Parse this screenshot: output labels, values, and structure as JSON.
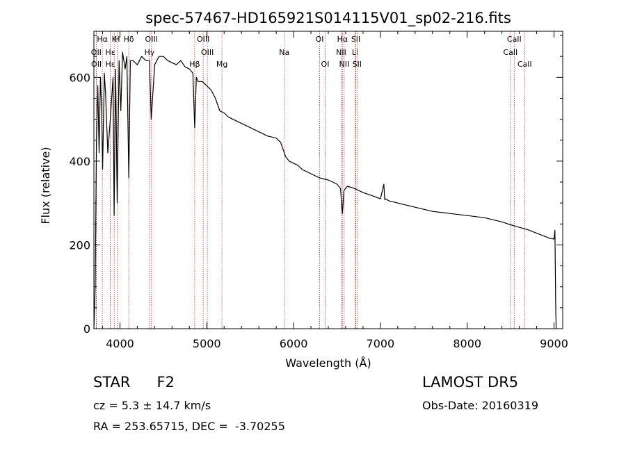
{
  "chart_data": {
    "type": "line",
    "title": "spec-57467-HD165921S014115V01_sp02-216.fits",
    "xlabel": "Wavelength (Å)",
    "ylabel": "Flux (relative)",
    "xlim": [
      3700,
      9100
    ],
    "ylim": [
      0,
      710
    ],
    "x_ticks": [
      4000,
      5000,
      6000,
      7000,
      8000,
      9000
    ],
    "y_ticks": [
      0,
      200,
      400,
      600
    ],
    "grid": false,
    "legend": "none",
    "line_color": "#000000",
    "marker_color": "#c83c3c",
    "series": [
      {
        "x": [
          3700,
          3715,
          3730,
          3745,
          3760,
          3775,
          3790,
          3800,
          3820,
          3835,
          3860,
          3889,
          3920,
          3933,
          3950,
          3968,
          3990,
          4010,
          4030,
          4060,
          4080,
          4102,
          4120,
          4150,
          4200,
          4250,
          4300,
          4340,
          4360,
          4400,
          4450,
          4500,
          4550,
          4600,
          4650,
          4700,
          4750,
          4800,
          4840,
          4861,
          4880,
          4900,
          4950,
          5000,
          5050,
          5100,
          5150,
          5200,
          5250,
          5300,
          5400,
          5500,
          5600,
          5700,
          5800,
          5850,
          5893,
          5910,
          5950,
          6000,
          6050,
          6100,
          6200,
          6300,
          6400,
          6500,
          6540,
          6563,
          6580,
          6620,
          6700,
          6800,
          6900,
          7000,
          7040,
          7050,
          7060,
          7100,
          7200,
          7400,
          7600,
          7800,
          8000,
          8200,
          8400,
          8500,
          8600,
          8700,
          8800,
          8900,
          8950,
          9000,
          9010,
          9020,
          9025
        ],
        "y": [
          0,
          100,
          450,
          580,
          420,
          600,
          520,
          380,
          610,
          560,
          420,
          500,
          600,
          270,
          620,
          300,
          640,
          520,
          660,
          620,
          650,
          360,
          640,
          640,
          630,
          650,
          640,
          640,
          500,
          630,
          650,
          650,
          640,
          635,
          630,
          640,
          625,
          620,
          610,
          480,
          600,
          590,
          590,
          580,
          570,
          550,
          520,
          515,
          505,
          500,
          490,
          480,
          470,
          460,
          455,
          445,
          420,
          410,
          400,
          395,
          390,
          380,
          370,
          360,
          355,
          345,
          335,
          275,
          330,
          340,
          335,
          325,
          318,
          310,
          345,
          308,
          310,
          305,
          300,
          290,
          280,
          275,
          270,
          265,
          255,
          248,
          242,
          236,
          228,
          220,
          216,
          214,
          235,
          50,
          0
        ]
      }
    ],
    "line_markers": [
      {
        "label": "Hα",
        "wavelength": 3797,
        "row": 0
      },
      {
        "label": "K",
        "wavelength": 3934,
        "row": 0
      },
      {
        "label": "H",
        "wavelength": 3968,
        "row": 0
      },
      {
        "label": "Hδ",
        "wavelength": 4102,
        "row": 0
      },
      {
        "label": "OIII",
        "wavelength": 4363,
        "row": 0
      },
      {
        "label": "OIII",
        "wavelength": 4959,
        "row": 0
      },
      {
        "label": "OI",
        "wavelength": 6300,
        "row": 0
      },
      {
        "label": "Hα",
        "wavelength": 6563,
        "row": 0
      },
      {
        "label": "SII",
        "wavelength": 6717,
        "row": 0
      },
      {
        "label": "CaII",
        "wavelength": 8542,
        "row": 0
      },
      {
        "label": "OII",
        "wavelength": 3727,
        "row": 1
      },
      {
        "label": "Hε",
        "wavelength": 3889,
        "row": 1
      },
      {
        "label": "Hγ",
        "wavelength": 4340,
        "row": 1
      },
      {
        "label": "OIII",
        "wavelength": 5007,
        "row": 1
      },
      {
        "label": "Na",
        "wavelength": 5893,
        "row": 1
      },
      {
        "label": "NII",
        "wavelength": 6548,
        "row": 1
      },
      {
        "label": "Li",
        "wavelength": 6708,
        "row": 1
      },
      {
        "label": "CaII",
        "wavelength": 8498,
        "row": 1
      },
      {
        "label": "OII",
        "wavelength": 3729,
        "row": 2
      },
      {
        "label": "Hε",
        "wavelength": 3889,
        "row": 2
      },
      {
        "label": "Hβ",
        "wavelength": 4861,
        "row": 2
      },
      {
        "label": "Mg",
        "wavelength": 5175,
        "row": 2
      },
      {
        "label": "OI",
        "wavelength": 6364,
        "row": 2
      },
      {
        "label": "NII",
        "wavelength": 6583,
        "row": 2
      },
      {
        "label": "SII",
        "wavelength": 6731,
        "row": 2
      },
      {
        "label": "CaII",
        "wavelength": 8662,
        "row": 2
      }
    ]
  },
  "info": {
    "object_class": "STAR",
    "subclass": "F2",
    "cz": "cz = 5.3 ± 14.7 km/s",
    "ra_dec": "RA = 253.65715, DEC =  -3.70255",
    "survey": "LAMOST DR5",
    "obs_date": "Obs-Date: 20160319"
  }
}
